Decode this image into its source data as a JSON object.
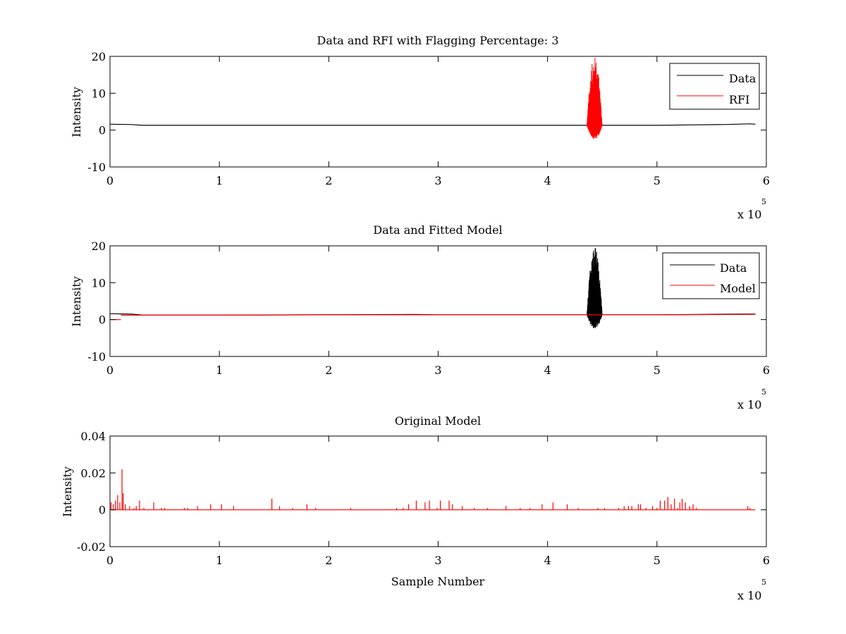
{
  "figure": {
    "multiplier_base": "x 10",
    "multiplier_exponent": "5"
  },
  "colors": {
    "data": "#000000",
    "red": "#ff0000",
    "axes": "#000000",
    "background": "#ffffff"
  },
  "chart_data": [
    {
      "type": "line",
      "title": "Data and RFI with Flagging Percentage: 3",
      "xlabel": "",
      "ylabel": "Intensity",
      "xlim": [
        0,
        600000
      ],
      "ylim": [
        -10,
        20
      ],
      "x_ticks": [
        "0",
        "1",
        "2",
        "3",
        "4",
        "5",
        "6"
      ],
      "y_ticks": [
        "-10",
        "0",
        "10",
        "20"
      ],
      "x_tick_values": [
        0,
        100000,
        200000,
        300000,
        400000,
        500000,
        600000
      ],
      "y_tick_values": [
        -10,
        0,
        10,
        20
      ],
      "legend_position": "top-right",
      "series": [
        {
          "name": "Data",
          "color": "#000000",
          "points": [
            [
              0,
              1.6
            ],
            [
              20000,
              1.5
            ],
            [
              30000,
              1.3
            ],
            [
              100000,
              1.3
            ],
            [
              200000,
              1.3
            ],
            [
              300000,
              1.3
            ],
            [
              400000,
              1.3
            ],
            [
              430000,
              1.3
            ],
            [
              450000,
              1.3
            ],
            [
              500000,
              1.3
            ],
            [
              530000,
              1.4
            ],
            [
              560000,
              1.5
            ],
            [
              585000,
              1.7
            ],
            [
              590000,
              1.6
            ]
          ]
        },
        {
          "name": "RFI",
          "color": "#ff0000",
          "burst": {
            "x_start": 436000,
            "x_end": 450000,
            "max": 20,
            "min": -2.5
          }
        }
      ]
    },
    {
      "type": "line",
      "title": "Data and Fitted Model",
      "xlabel": "",
      "ylabel": "Intensity",
      "xlim": [
        0,
        600000
      ],
      "ylim": [
        -10,
        20
      ],
      "x_ticks": [
        "0",
        "1",
        "2",
        "3",
        "4",
        "5",
        "6"
      ],
      "y_ticks": [
        "-10",
        "0",
        "10",
        "20"
      ],
      "x_tick_values": [
        0,
        100000,
        200000,
        300000,
        400000,
        500000,
        600000
      ],
      "y_tick_values": [
        -10,
        0,
        10,
        20
      ],
      "legend_position": "top-right",
      "series": [
        {
          "name": "Data",
          "color": "#000000",
          "points": [
            [
              0,
              1.6
            ],
            [
              20000,
              1.5
            ],
            [
              30000,
              1.2
            ],
            [
              100000,
              1.2
            ],
            [
              180000,
              1.3
            ],
            [
              280000,
              1.4
            ],
            [
              300000,
              1.3
            ],
            [
              400000,
              1.3
            ],
            [
              500000,
              1.3
            ],
            [
              580000,
              1.5
            ],
            [
              590000,
              1.5
            ]
          ],
          "burst": {
            "x_start": 436000,
            "x_end": 450000,
            "max": 20,
            "min": -2.5
          }
        },
        {
          "name": "Model",
          "color": "#ff0000",
          "points": [
            [
              10000,
              1.2
            ],
            [
              100000,
              1.2
            ],
            [
              200000,
              1.3
            ],
            [
              300000,
              1.3
            ],
            [
              400000,
              1.3
            ],
            [
              500000,
              1.3
            ],
            [
              590000,
              1.4
            ]
          ],
          "offset_segment": [
            [
              0,
              0
            ],
            [
              10000,
              0
            ]
          ]
        }
      ]
    },
    {
      "type": "line",
      "title": "Original Model",
      "xlabel": "Sample Number",
      "ylabel": "Intensity",
      "xlim": [
        0,
        600000
      ],
      "ylim": [
        -0.02,
        0.04
      ],
      "x_ticks": [
        "0",
        "1",
        "2",
        "3",
        "4",
        "5",
        "6"
      ],
      "y_ticks": [
        "-0.02",
        "0",
        "0.02",
        "0.04"
      ],
      "x_tick_values": [
        0,
        100000,
        200000,
        300000,
        400000,
        500000,
        600000
      ],
      "y_tick_values": [
        -0.02,
        0,
        0.02,
        0.04
      ],
      "series": [
        {
          "color": "#ff0000",
          "spikes": [
            [
              1000,
              0.004
            ],
            [
              3000,
              0.003
            ],
            [
              5000,
              0.005
            ],
            [
              7000,
              0.008
            ],
            [
              9000,
              0.004
            ],
            [
              11000,
              0.022
            ],
            [
              12000,
              0.009
            ],
            [
              14000,
              0.003
            ],
            [
              18000,
              0.002
            ],
            [
              22000,
              0.001
            ],
            [
              24000,
              0.002
            ],
            [
              27000,
              0.005
            ],
            [
              31000,
              0.001
            ],
            [
              40000,
              0.004
            ],
            [
              47000,
              0.001
            ],
            [
              50000,
              0.001
            ],
            [
              68000,
              0.001
            ],
            [
              71000,
              0.001
            ],
            [
              80000,
              0.002
            ],
            [
              92000,
              0.003
            ],
            [
              102000,
              0.003
            ],
            [
              113000,
              0.002
            ],
            [
              148000,
              0.006
            ],
            [
              155000,
              0.002
            ],
            [
              167000,
              0.001
            ],
            [
              180000,
              0.003
            ],
            [
              188000,
              0.001
            ],
            [
              220000,
              0.001
            ],
            [
              262000,
              0.001
            ],
            [
              268000,
              0.001
            ],
            [
              273000,
              0.003
            ],
            [
              280000,
              0.005
            ],
            [
              288000,
              0.004
            ],
            [
              292000,
              0.005
            ],
            [
              299000,
              0.001
            ],
            [
              302000,
              0.005
            ],
            [
              310000,
              0.005
            ],
            [
              313000,
              0.003
            ],
            [
              322000,
              0.002
            ],
            [
              333000,
              0.001
            ],
            [
              345000,
              0.001
            ],
            [
              362000,
              0.002
            ],
            [
              375000,
              0.001
            ],
            [
              384000,
              0.001
            ],
            [
              395000,
              0.003
            ],
            [
              405000,
              0.004
            ],
            [
              418000,
              0.003
            ],
            [
              428000,
              0.001
            ],
            [
              446000,
              0.001
            ],
            [
              452000,
              0.001
            ],
            [
              465000,
              0.001
            ],
            [
              470000,
              0.002
            ],
            [
              474000,
              0.002
            ],
            [
              477000,
              0.002
            ],
            [
              483000,
              0.003
            ],
            [
              485000,
              0.003
            ],
            [
              490000,
              0.001
            ],
            [
              496000,
              0.002
            ],
            [
              500000,
              0.001
            ],
            [
              503000,
              0.005
            ],
            [
              507000,
              0.005
            ],
            [
              510000,
              0.007
            ],
            [
              513000,
              0.003
            ],
            [
              516000,
              0.006
            ],
            [
              519000,
              0.001
            ],
            [
              521000,
              0.004
            ],
            [
              523000,
              0.006
            ],
            [
              526000,
              0.004
            ],
            [
              530000,
              0.002
            ],
            [
              533000,
              0.003
            ],
            [
              536000,
              0.001
            ],
            [
              583000,
              0.002
            ],
            [
              585000,
              0.001
            ]
          ]
        }
      ]
    }
  ]
}
